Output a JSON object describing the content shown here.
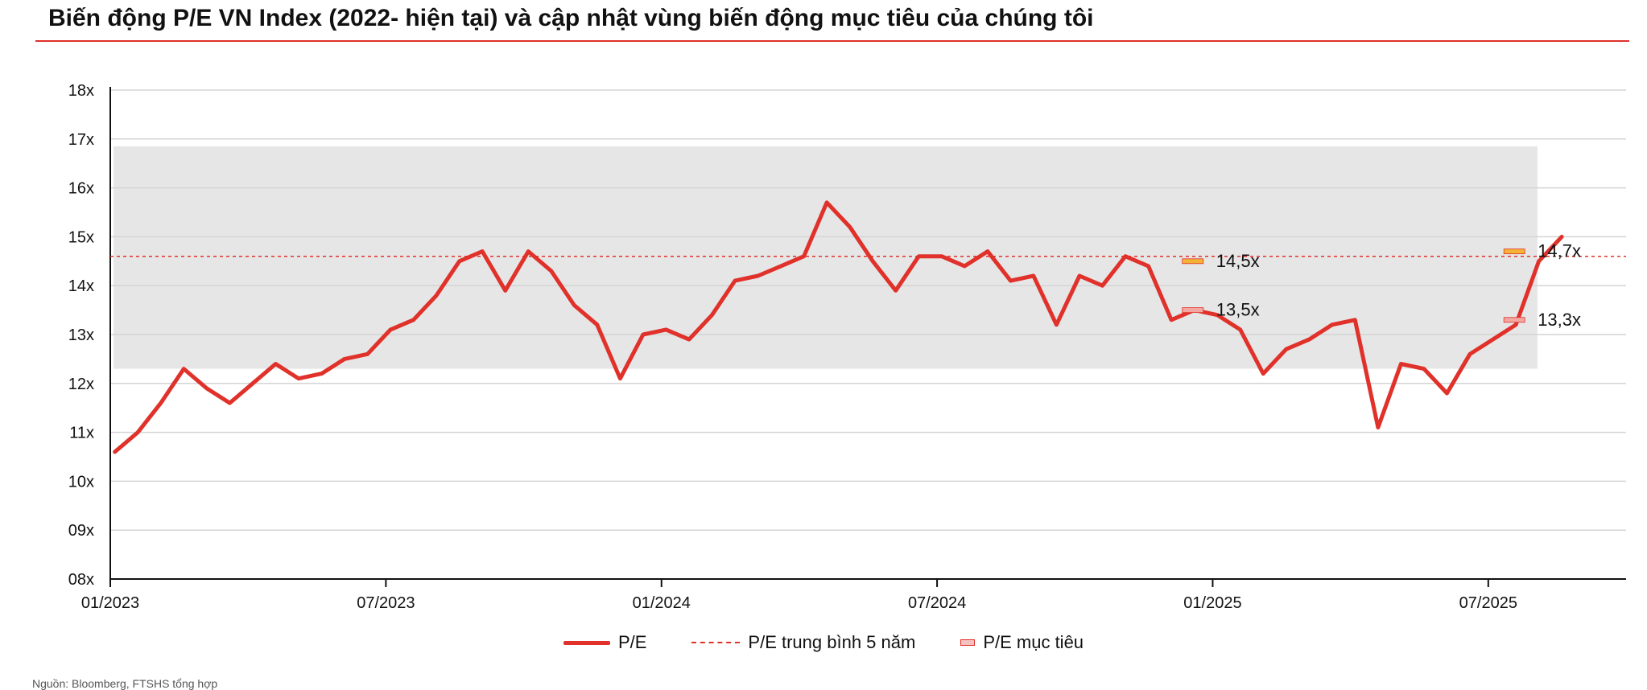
{
  "title": "Biến động P/E VN Index (2022- hiện tại) và cập nhật  vùng biến động mục tiêu của chúng tôi",
  "source_note": "Nguồn: Bloomberg, FTSHS tổng hợp",
  "legend": {
    "pe": "P/E",
    "avg": "P/E trung bình 5 năm",
    "target": "P/E mục tiêu"
  },
  "colors": {
    "line": "#e0312a",
    "band": "#e6e6e6",
    "grid": "#d4d4d4",
    "target_marker": "#f5b335",
    "target_marker_alt": "#f4a6a0"
  },
  "chart_data": {
    "type": "line",
    "x_ticks": [
      "01/2023",
      "07/2023",
      "01/2024",
      "07/2024",
      "01/2025",
      "07/2025"
    ],
    "y_ticks": [
      "08x",
      "09x",
      "10x",
      "11x",
      "12x",
      "13x",
      "14x",
      "15x",
      "16x",
      "17x",
      "18x"
    ],
    "ylim": [
      8,
      18
    ],
    "xlim": [
      "2023-01",
      "2025-10"
    ],
    "band": {
      "low": 12.3,
      "high": 16.85,
      "from": "2023-01",
      "to": "2025-08"
    },
    "avg_pe_5y": 14.6,
    "series": [
      {
        "name": "P/E",
        "x": [
          "2023-01",
          "2023-01",
          "2023-02",
          "2023-02",
          "2023-03",
          "2023-03",
          "2023-04",
          "2023-04",
          "2023-05",
          "2023-05",
          "2023-06",
          "2023-06",
          "2023-07",
          "2023-07",
          "2023-08",
          "2023-08",
          "2023-09",
          "2023-09",
          "2023-10",
          "2023-10",
          "2023-11",
          "2023-11",
          "2023-12",
          "2023-12",
          "2024-01",
          "2024-01",
          "2024-02",
          "2024-02",
          "2024-03",
          "2024-03",
          "2024-04",
          "2024-04",
          "2024-05",
          "2024-05",
          "2024-06",
          "2024-06",
          "2024-07",
          "2024-07",
          "2024-08",
          "2024-08",
          "2024-09",
          "2024-09",
          "2024-10",
          "2024-10",
          "2024-11",
          "2024-11",
          "2024-12",
          "2024-12",
          "2025-01",
          "2025-01",
          "2025-02",
          "2025-02",
          "2025-03",
          "2025-03",
          "2025-04",
          "2025-04",
          "2025-05",
          "2025-05",
          "2025-06",
          "2025-06",
          "2025-07",
          "2025-07",
          "2025-08",
          "2025-08"
        ],
        "values": [
          10.6,
          11.0,
          11.6,
          12.3,
          11.9,
          11.6,
          12.0,
          12.4,
          12.1,
          12.2,
          12.5,
          12.6,
          13.1,
          13.3,
          13.8,
          14.5,
          14.7,
          13.9,
          14.7,
          14.3,
          13.6,
          13.2,
          12.1,
          13.0,
          13.1,
          12.9,
          13.4,
          14.1,
          14.2,
          14.4,
          14.6,
          15.7,
          15.2,
          14.5,
          13.9,
          14.6,
          14.6,
          14.4,
          14.7,
          14.1,
          14.2,
          13.2,
          14.2,
          14.0,
          14.6,
          14.4,
          13.3,
          13.5,
          13.4,
          13.1,
          12.2,
          12.7,
          12.9,
          13.2,
          13.3,
          11.1,
          12.4,
          12.3,
          11.8,
          12.6,
          12.9,
          13.2,
          14.5,
          15.0
        ]
      },
      {
        "name": "P/E trung bình 5 năm",
        "x": [
          "2023-01",
          "2025-10"
        ],
        "values": [
          14.6,
          14.6
        ]
      }
    ],
    "target_markers": [
      {
        "x": "2024-12",
        "value": 14.5,
        "label": "14,5x"
      },
      {
        "x": "2024-12",
        "value": 13.5,
        "label": "13,5x"
      },
      {
        "x": "2025-07",
        "value": 14.7,
        "label": "14,7x"
      },
      {
        "x": "2025-07",
        "value": 13.3,
        "label": "13,3x"
      }
    ],
    "grid": true,
    "legend_position": "bottom"
  }
}
